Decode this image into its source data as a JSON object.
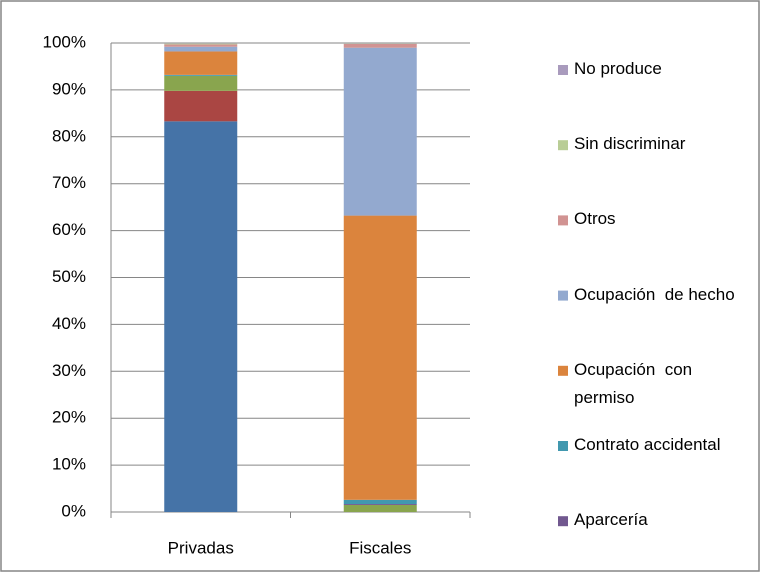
{
  "chart_data": {
    "type": "stacked_bar",
    "categories": [
      "Privadas",
      "Fiscales"
    ],
    "series": [
      {
        "color": "#4573a7",
        "values": [
          83.3,
          0
        ]
      },
      {
        "color": "#aa4643",
        "values": [
          6.5,
          0
        ]
      },
      {
        "color": "#89a54e",
        "values": [
          3.2,
          1.5
        ]
      },
      {
        "name": "Aparcería",
        "color": "#71588f",
        "values": [
          0,
          0.2
        ]
      },
      {
        "name": "Contrato accidental",
        "color": "#4198af",
        "values": [
          0.2,
          0.9
        ]
      },
      {
        "name": "Ocupación  con permiso",
        "color": "#db843d",
        "values": [
          5,
          60.6
        ]
      },
      {
        "name": "Ocupación  de hecho",
        "color": "#93a9cf",
        "values": [
          1,
          35.8
        ]
      },
      {
        "name": "Otros",
        "color": "#d19392",
        "values": [
          0.5,
          0.8
        ]
      },
      {
        "name": "Sin discriminar",
        "color": "#b9cd96",
        "values": [
          0.2,
          0.1
        ]
      },
      {
        "name": "No produce",
        "color": "#a99bbd",
        "values": [
          0.1,
          0.1
        ]
      }
    ],
    "ylim": [
      0,
      100
    ],
    "yticks": [
      {
        "value": 0,
        "label": "0%"
      },
      {
        "value": 10,
        "label": "10%"
      },
      {
        "value": 20,
        "label": "20%"
      },
      {
        "value": 30,
        "label": "30%"
      },
      {
        "value": 40,
        "label": "40%"
      },
      {
        "value": 50,
        "label": "50%"
      },
      {
        "value": 60,
        "label": "60%"
      },
      {
        "value": 70,
        "label": "70%"
      },
      {
        "value": 80,
        "label": "80%"
      },
      {
        "value": 90,
        "label": "90%"
      },
      {
        "value": 100,
        "label": "100%"
      }
    ],
    "grid": true,
    "legend": "right"
  }
}
